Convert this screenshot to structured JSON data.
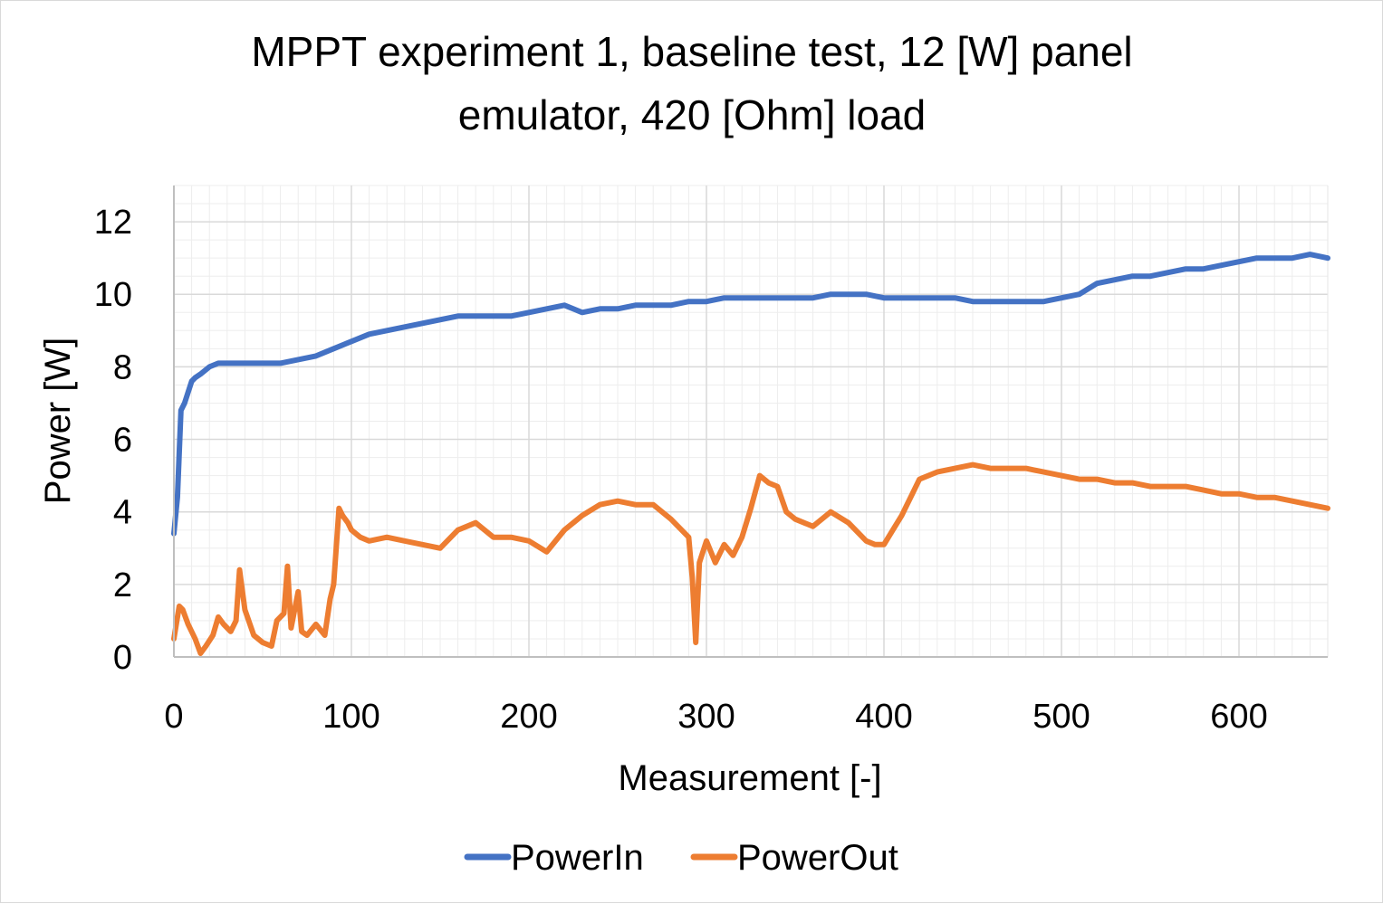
{
  "chart_data": {
    "type": "line",
    "title": "MPPT experiment 1, baseline test, 12 [W] panel emulator, 420 [Ohm] load",
    "title_lines": [
      "MPPT experiment 1, baseline test, 12 [W] panel",
      "emulator, 420 [Ohm] load"
    ],
    "xlabel": "Measurement [-]",
    "ylabel": "Power [W]",
    "xlim": [
      0,
      650
    ],
    "ylim": [
      0,
      13
    ],
    "x_ticks": [
      0,
      100,
      200,
      300,
      400,
      500,
      600
    ],
    "y_ticks": [
      0,
      2,
      4,
      6,
      8,
      10,
      12
    ],
    "grid": {
      "major": true,
      "minor": true
    },
    "legend_position": "bottom",
    "series": [
      {
        "name": "PowerIn",
        "color": "#4472C4",
        "x": [
          0,
          2,
          4,
          6,
          8,
          10,
          12,
          15,
          20,
          25,
          30,
          40,
          50,
          60,
          70,
          80,
          90,
          100,
          110,
          120,
          130,
          140,
          150,
          160,
          170,
          180,
          190,
          200,
          210,
          220,
          230,
          240,
          250,
          260,
          270,
          280,
          290,
          300,
          310,
          320,
          330,
          340,
          350,
          360,
          370,
          380,
          390,
          400,
          410,
          420,
          430,
          440,
          450,
          460,
          470,
          480,
          490,
          500,
          510,
          520,
          530,
          540,
          550,
          560,
          570,
          580,
          590,
          600,
          610,
          620,
          630,
          640,
          650
        ],
        "y": [
          3.4,
          4.4,
          6.8,
          7.0,
          7.3,
          7.6,
          7.7,
          7.8,
          8.0,
          8.1,
          8.1,
          8.1,
          8.1,
          8.1,
          8.2,
          8.3,
          8.5,
          8.7,
          8.9,
          9.0,
          9.1,
          9.2,
          9.3,
          9.4,
          9.4,
          9.4,
          9.4,
          9.5,
          9.6,
          9.7,
          9.5,
          9.6,
          9.6,
          9.7,
          9.7,
          9.7,
          9.8,
          9.8,
          9.9,
          9.9,
          9.9,
          9.9,
          9.9,
          9.9,
          10.0,
          10.0,
          10.0,
          9.9,
          9.9,
          9.9,
          9.9,
          9.9,
          9.8,
          9.8,
          9.8,
          9.8,
          9.8,
          9.9,
          10.0,
          10.3,
          10.4,
          10.5,
          10.5,
          10.6,
          10.7,
          10.7,
          10.8,
          10.9,
          11.0,
          11.0,
          11.0,
          11.1,
          11.0
        ]
      },
      {
        "name": "PowerOut",
        "color": "#ED7D31",
        "x": [
          0,
          3,
          5,
          8,
          12,
          15,
          18,
          22,
          25,
          28,
          32,
          35,
          37,
          40,
          45,
          50,
          55,
          58,
          62,
          64,
          66,
          70,
          72,
          75,
          80,
          85,
          88,
          90,
          93,
          95,
          98,
          100,
          105,
          110,
          120,
          130,
          140,
          150,
          160,
          170,
          180,
          190,
          200,
          210,
          220,
          230,
          240,
          250,
          260,
          270,
          280,
          290,
          292,
          294,
          296,
          300,
          305,
          310,
          315,
          320,
          325,
          330,
          335,
          340,
          345,
          350,
          360,
          370,
          380,
          390,
          395,
          400,
          405,
          410,
          415,
          420,
          430,
          440,
          450,
          460,
          470,
          480,
          490,
          500,
          510,
          520,
          530,
          540,
          550,
          560,
          570,
          580,
          590,
          600,
          610,
          620,
          630,
          640,
          650
        ],
        "y": [
          0.5,
          1.4,
          1.3,
          0.9,
          0.5,
          0.1,
          0.3,
          0.6,
          1.1,
          0.9,
          0.7,
          1.0,
          2.4,
          1.3,
          0.6,
          0.4,
          0.3,
          1.0,
          1.2,
          2.5,
          0.8,
          1.8,
          0.7,
          0.6,
          0.9,
          0.6,
          1.6,
          2.0,
          4.1,
          3.9,
          3.7,
          3.5,
          3.3,
          3.2,
          3.3,
          3.2,
          3.1,
          3.0,
          3.5,
          3.7,
          3.3,
          3.3,
          3.2,
          2.9,
          3.5,
          3.9,
          4.2,
          4.3,
          4.2,
          4.2,
          3.8,
          3.3,
          2.2,
          0.4,
          2.6,
          3.2,
          2.6,
          3.1,
          2.8,
          3.3,
          4.1,
          5.0,
          4.8,
          4.7,
          4.0,
          3.8,
          3.6,
          4.0,
          3.7,
          3.2,
          3.1,
          3.1,
          3.5,
          3.9,
          4.4,
          4.9,
          5.1,
          5.2,
          5.3,
          5.2,
          5.2,
          5.2,
          5.1,
          5.0,
          4.9,
          4.9,
          4.8,
          4.8,
          4.7,
          4.7,
          4.7,
          4.6,
          4.5,
          4.5,
          4.4,
          4.4,
          4.3,
          4.2,
          4.1
        ]
      }
    ]
  }
}
